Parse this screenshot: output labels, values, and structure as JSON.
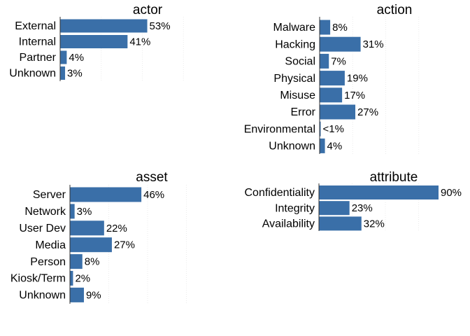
{
  "bar_color": "#3a6fa8",
  "chart_data": [
    {
      "type": "bar",
      "orientation": "horizontal",
      "title": "actor",
      "categories": [
        "External",
        "Internal",
        "Partner",
        "Unknown"
      ],
      "values": [
        53,
        41,
        4,
        3
      ],
      "value_labels": [
        "53%",
        "41%",
        "4%",
        "3%"
      ],
      "xlim": [
        0,
        100
      ],
      "grid": true
    },
    {
      "type": "bar",
      "orientation": "horizontal",
      "title": "action",
      "categories": [
        "Malware",
        "Hacking",
        "Social",
        "Physical",
        "Misuse",
        "Error",
        "Environmental",
        "Unknown"
      ],
      "values": [
        8,
        31,
        7,
        19,
        17,
        27,
        0.5,
        4
      ],
      "value_labels": [
        "8%",
        "31%",
        "7%",
        "19%",
        "17%",
        "27%",
        "<1%",
        "4%"
      ],
      "xlim": [
        0,
        100
      ],
      "grid": true
    },
    {
      "type": "bar",
      "orientation": "horizontal",
      "title": "asset",
      "categories": [
        "Server",
        "Network",
        "User Dev",
        "Media",
        "Person",
        "Kiosk/Term",
        "Unknown"
      ],
      "values": [
        46,
        3,
        22,
        27,
        8,
        2,
        9
      ],
      "value_labels": [
        "46%",
        "3%",
        "22%",
        "27%",
        "8%",
        "2%",
        "9%"
      ],
      "xlim": [
        0,
        100
      ],
      "grid": true
    },
    {
      "type": "bar",
      "orientation": "horizontal",
      "title": "attribute",
      "categories": [
        "Confidentiality",
        "Integrity",
        "Availability"
      ],
      "values": [
        90,
        23,
        32
      ],
      "value_labels": [
        "90%",
        "23%",
        "32%"
      ],
      "xlim": [
        0,
        100
      ],
      "grid": true
    }
  ]
}
